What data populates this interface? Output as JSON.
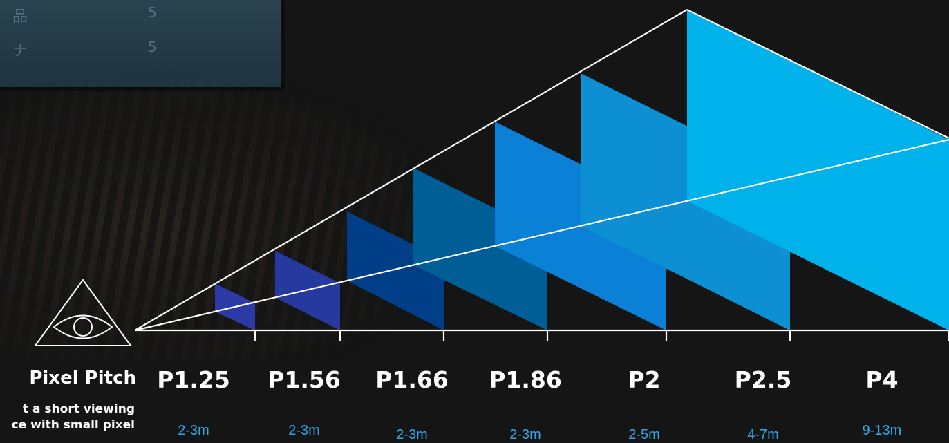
{
  "header": {
    "title": "Pixel Pitch",
    "description_lines": [
      "t a short viewing",
      "ce with small pixel"
    ]
  },
  "background": {
    "monitor_rows": [
      {
        "text": "品",
        "value": "5"
      },
      {
        "text": "ナ",
        "value": "5"
      }
    ]
  },
  "pitches": [
    {
      "label": "P1.25",
      "distance": "2-3m",
      "color": "#2b3aa6"
    },
    {
      "label": "P1.56",
      "distance": "2-3m",
      "color": "#25399f"
    },
    {
      "label": "P1.66",
      "distance": "2-3m",
      "color": "#003f88"
    },
    {
      "label": "P1.86",
      "distance": "2-3m",
      "color": "#005e96"
    },
    {
      "label": "P2",
      "distance": "2-5m",
      "color": "#0a80d6"
    },
    {
      "label": "P2.5",
      "distance": "4-7m",
      "color": "#0c8fd3"
    },
    {
      "label": "P4",
      "distance": "9-13m",
      "color": "#00b2ec"
    }
  ],
  "colors": {
    "line": "#ffffff",
    "distance_text": "#2ea8ea",
    "background": "#151515"
  },
  "icon": "eye-in-triangle-icon"
}
